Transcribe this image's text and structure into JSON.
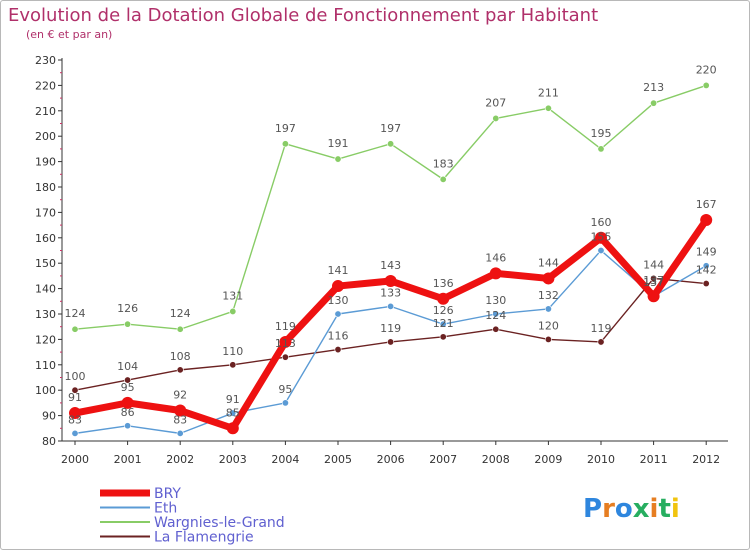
{
  "chart_data": {
    "type": "line",
    "title": "Evolution de la Dotation Globale de Fonctionnement par Habitant",
    "subtitle": "(en € et par an)",
    "x": [
      "2000",
      "2001",
      "2002",
      "2003",
      "2004",
      "2005",
      "2006",
      "2007",
      "2008",
      "2009",
      "2010",
      "2011",
      "2012"
    ],
    "ylim": [
      80,
      230
    ],
    "yticks": [
      80,
      90,
      100,
      110,
      120,
      130,
      140,
      150,
      160,
      170,
      180,
      190,
      200,
      210,
      220,
      230
    ],
    "grid": false,
    "legend_position": "bottom-left",
    "series": [
      {
        "name": "BRY",
        "color": "#ee1111",
        "values": [
          91,
          95,
          92,
          85,
          119,
          141,
          143,
          136,
          146,
          144,
          160,
          137,
          167
        ],
        "labels": [
          "91",
          "95",
          "92",
          "85",
          "119",
          "141",
          "143",
          "136",
          "146",
          "144",
          "160",
          "137",
          "167"
        ]
      },
      {
        "name": "Eth",
        "color": "#5b9bd5",
        "values": [
          83,
          86,
          83,
          91,
          95,
          130,
          133,
          126,
          130,
          132,
          155,
          137,
          149
        ],
        "labels": [
          "83",
          "86",
          "83",
          "91",
          "95",
          "130",
          "133",
          "126",
          "130",
          "132",
          "155",
          "137",
          "149"
        ]
      },
      {
        "name": "Wargnies-le-Grand",
        "color": "#88cc66",
        "values": [
          124,
          126,
          124,
          131,
          197,
          191,
          197,
          183,
          207,
          211,
          195,
          213,
          220
        ],
        "labels": [
          "124",
          "126",
          "124",
          "131",
          "197",
          "191",
          "197",
          "183",
          "207",
          "211",
          "195",
          "213",
          "220"
        ]
      },
      {
        "name": "La Flamengrie",
        "color": "#6b2222",
        "values": [
          100,
          104,
          108,
          110,
          113,
          116,
          119,
          121,
          124,
          120,
          119,
          144,
          142
        ],
        "labels": [
          "100",
          "104",
          "108",
          "110",
          "113",
          "116",
          "119",
          "121",
          "124",
          "120",
          "119",
          "144",
          "142"
        ]
      }
    ]
  },
  "logo": {
    "text": "Proxiti",
    "letter_colors": [
      "#2e86de",
      "#e67e22",
      "#2e86de",
      "#27ae60",
      "#e67e22",
      "#27ae60",
      "#f1c40f"
    ]
  }
}
